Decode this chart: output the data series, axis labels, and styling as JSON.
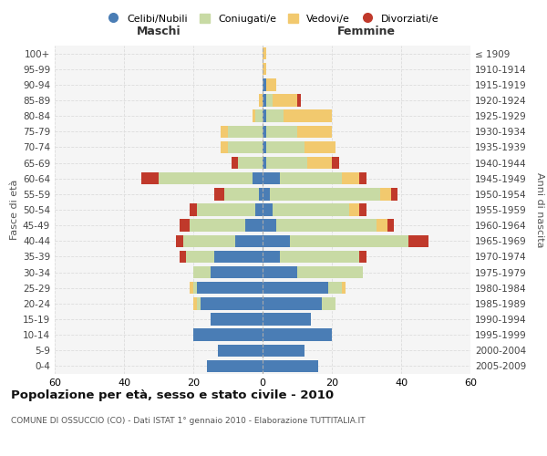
{
  "age_groups": [
    "0-4",
    "5-9",
    "10-14",
    "15-19",
    "20-24",
    "25-29",
    "30-34",
    "35-39",
    "40-44",
    "45-49",
    "50-54",
    "55-59",
    "60-64",
    "65-69",
    "70-74",
    "75-79",
    "80-84",
    "85-89",
    "90-94",
    "95-99",
    "100+"
  ],
  "birth_years": [
    "2005-2009",
    "2000-2004",
    "1995-1999",
    "1990-1994",
    "1985-1989",
    "1980-1984",
    "1975-1979",
    "1970-1974",
    "1965-1969",
    "1960-1964",
    "1955-1959",
    "1950-1954",
    "1945-1949",
    "1940-1944",
    "1935-1939",
    "1930-1934",
    "1925-1929",
    "1920-1924",
    "1915-1919",
    "1910-1914",
    "≤ 1909"
  ],
  "male": {
    "celibi": [
      16,
      13,
      20,
      15,
      18,
      19,
      15,
      14,
      8,
      5,
      2,
      1,
      3,
      0,
      0,
      0,
      0,
      0,
      0,
      0,
      0
    ],
    "coniugati": [
      0,
      0,
      0,
      0,
      1,
      1,
      5,
      8,
      15,
      16,
      17,
      10,
      27,
      7,
      10,
      10,
      2,
      0,
      0,
      0,
      0
    ],
    "vedovi": [
      0,
      0,
      0,
      0,
      1,
      1,
      0,
      0,
      0,
      0,
      0,
      0,
      0,
      0,
      2,
      2,
      1,
      1,
      0,
      0,
      0
    ],
    "divorziati": [
      0,
      0,
      0,
      0,
      0,
      0,
      0,
      2,
      2,
      3,
      2,
      3,
      5,
      2,
      0,
      0,
      0,
      0,
      0,
      0,
      0
    ]
  },
  "female": {
    "nubili": [
      16,
      12,
      20,
      14,
      17,
      19,
      10,
      5,
      8,
      4,
      3,
      2,
      5,
      1,
      1,
      1,
      1,
      1,
      1,
      0,
      0
    ],
    "coniugate": [
      0,
      0,
      0,
      0,
      4,
      4,
      19,
      23,
      34,
      29,
      22,
      32,
      18,
      12,
      11,
      9,
      5,
      2,
      0,
      0,
      0
    ],
    "vedove": [
      0,
      0,
      0,
      0,
      0,
      1,
      0,
      0,
      0,
      3,
      3,
      3,
      5,
      7,
      9,
      10,
      14,
      7,
      3,
      1,
      1
    ],
    "divorziate": [
      0,
      0,
      0,
      0,
      0,
      0,
      0,
      2,
      6,
      2,
      2,
      2,
      2,
      2,
      0,
      0,
      0,
      1,
      0,
      0,
      0
    ]
  },
  "colors": {
    "celibi": "#4a7db5",
    "coniugati": "#c8daa4",
    "vedovi": "#f2c96e",
    "divorziati": "#c0392b"
  },
  "xlim": 60,
  "title": "Popolazione per età, sesso e stato civile - 2010",
  "subtitle": "COMUNE DI OSSUCCIO (CO) - Dati ISTAT 1° gennaio 2010 - Elaborazione TUTTITALIA.IT",
  "xlabel_left": "Maschi",
  "xlabel_right": "Femmine",
  "ylabel_left": "Fasce di età",
  "ylabel_right": "Anni di nascita",
  "legend_labels": [
    "Celibi/Nubili",
    "Coniugati/e",
    "Vedovi/e",
    "Divorziati/e"
  ],
  "bg_color": "#ffffff",
  "grid_color": "#cccccc"
}
